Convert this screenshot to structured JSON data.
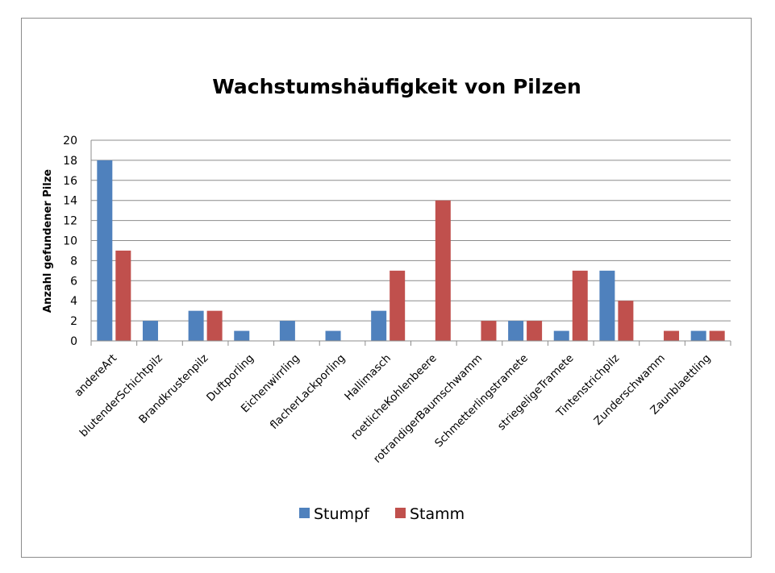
{
  "chart_data": {
    "type": "bar",
    "title": "Wachstumshäufigkeit von Pilzen",
    "xlabel": "",
    "ylabel": "Anzahl gefundener Pilze",
    "ylim": [
      0,
      20
    ],
    "yticks": [
      0,
      2,
      4,
      6,
      8,
      10,
      12,
      14,
      16,
      18,
      20
    ],
    "grid": true,
    "legend_position": "bottom",
    "categories": [
      "andereArt",
      "blutenderSchichtpilz",
      "Brandkrustenpilz",
      "Duftporling",
      "Eichenwirrling",
      "flacherLackporling",
      "Hallimasch",
      "roetlicheKohlenbeere",
      "rotrandigerBaumschwamm",
      "Schmetterlingstramete",
      "striegeligeTramete",
      "Tintenstrichpilz",
      "Zunderschwamm",
      "Zaunblaettling"
    ],
    "series": [
      {
        "name": "Stumpf",
        "color": "#4f81bd",
        "values": [
          18,
          2,
          3,
          1,
          2,
          1,
          3,
          0,
          0,
          2,
          1,
          7,
          0,
          1
        ]
      },
      {
        "name": "Stamm",
        "color": "#c0504d",
        "values": [
          9,
          0,
          3,
          0,
          0,
          0,
          7,
          14,
          2,
          2,
          7,
          4,
          1,
          1
        ]
      }
    ]
  }
}
